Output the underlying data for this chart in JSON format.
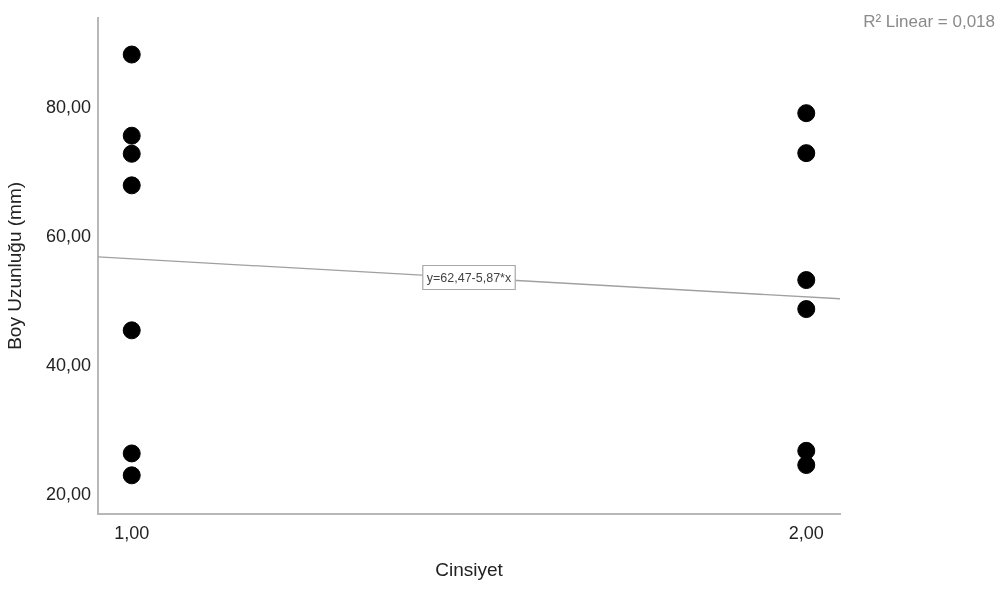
{
  "chart_data": {
    "type": "scatter",
    "xlabel": "Cinsiyet",
    "ylabel": "Boy Uzunluğu (mm)",
    "xlim": [
      0.95,
      2.05
    ],
    "xticks": [
      {
        "value": 1,
        "label": "1,00"
      },
      {
        "value": 2,
        "label": "2,00"
      }
    ],
    "ylim": [
      17,
      94
    ],
    "yticks": [
      {
        "value": 20,
        "label": "20,00"
      },
      {
        "value": 40,
        "label": "40,00"
      },
      {
        "value": 60,
        "label": "60,00"
      },
      {
        "value": 80,
        "label": "80,00"
      }
    ],
    "marker": "circle",
    "series": [
      {
        "color": "#000000",
        "x": [
          1,
          1,
          1,
          1,
          1,
          1,
          1,
          2,
          2,
          2,
          2,
          2,
          2
        ],
        "values": [
          88.3,
          75.7,
          72.9,
          68.0,
          45.5,
          26.4,
          23.0,
          79.2,
          73.0,
          53.3,
          48.8,
          26.8,
          24.6
        ]
      },
      {
        "type": "line",
        "color": "#a0a0a0",
        "marker": "none",
        "x": [
          0.95,
          2.05
        ],
        "values": [
          56.9,
          50.4
        ]
      }
    ],
    "annotations": [
      {
        "text": "y=62,47-5,87*x",
        "x": 1.5,
        "y": 53.7
      },
      "R² Linear = 0,018"
    ]
  }
}
